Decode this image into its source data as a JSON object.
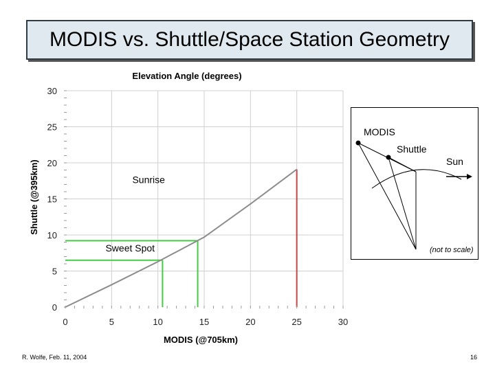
{
  "header": {
    "title": "MODIS vs. Shuttle/Space Station Geometry"
  },
  "footer": {
    "author": "R. Wolfe, Feb. 11, 2004",
    "page_number": "16"
  },
  "chart_data": {
    "type": "line",
    "title": "Elevation Angle (degrees)",
    "xlabel": "MODIS (@705km)",
    "ylabel": "Shuttle (@395km)",
    "xlim": [
      0,
      30
    ],
    "ylim": [
      0,
      30
    ],
    "x_ticks": [
      "0",
      "5",
      "10",
      "15",
      "20",
      "25",
      "30"
    ],
    "y_ticks": [
      "0",
      "5",
      "10",
      "15",
      "20",
      "25",
      "30"
    ],
    "grid": true,
    "series": [
      {
        "name": "",
        "color": "#8c8c8c",
        "x": [
          0,
          5,
          10,
          15,
          20,
          25
        ],
        "y": [
          0,
          3.1,
          6.3,
          9.7,
          14.3,
          19.1
        ]
      }
    ],
    "guides": [
      {
        "kind": "vertical",
        "x": 25,
        "y": 19.1,
        "color": "#cc4444"
      },
      {
        "kind": "vertical",
        "x": 14.3,
        "y": 9.2,
        "color": "#44cc44"
      },
      {
        "kind": "vertical",
        "x": 10.5,
        "y": 6.5,
        "color": "#44cc44"
      },
      {
        "kind": "horizontal",
        "x": 14.3,
        "y": 9.2,
        "color": "#44cc44"
      },
      {
        "kind": "horizontal",
        "x": 10.5,
        "y": 6.5,
        "color": "#44cc44"
      }
    ],
    "annotations": [
      {
        "text": "Sunrise",
        "x": 9.0,
        "y": 17.2
      },
      {
        "text": "Sweet Spot",
        "x": 7.0,
        "y": 7.7
      }
    ]
  },
  "inset": {
    "labels": {
      "modis": "MODIS",
      "shuttle": "Shuttle",
      "sun": "Sun"
    },
    "note": "(not to scale)"
  }
}
